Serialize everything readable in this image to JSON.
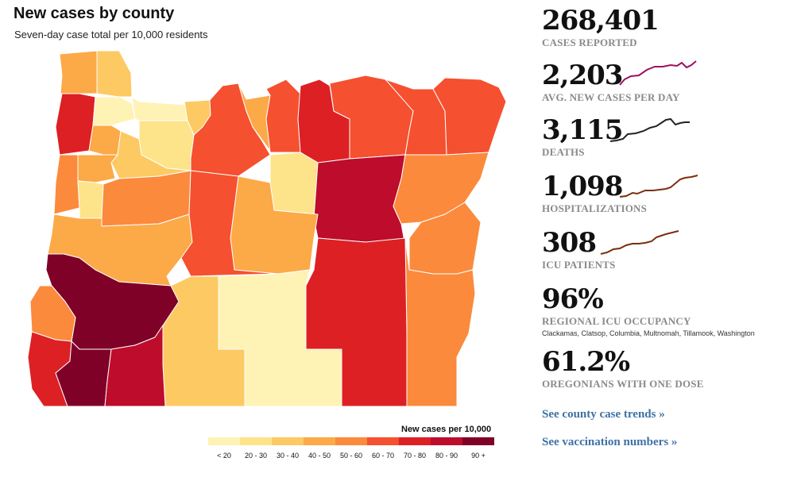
{
  "header": {
    "title": "New cases by county",
    "subtitle": "Seven-day case total per 10,000 residents"
  },
  "legend": {
    "title": "New cases per 10,000",
    "bins": [
      {
        "label": "< 20",
        "color": "#fff2b5"
      },
      {
        "label": "20 - 30",
        "color": "#fde48a"
      },
      {
        "label": "30 - 40",
        "color": "#fcc963"
      },
      {
        "label": "40 - 50",
        "color": "#fca947"
      },
      {
        "label": "50 - 60",
        "color": "#fb8a3d"
      },
      {
        "label": "60 - 70",
        "color": "#f5502f"
      },
      {
        "label": "70 - 80",
        "color": "#dd2024"
      },
      {
        "label": "80 - 90",
        "color": "#bd0c2c"
      },
      {
        "label": "90 +",
        "color": "#7f0127"
      }
    ]
  },
  "stats": [
    {
      "value": "268,401",
      "label": "CASES REPORTED",
      "spark": null
    },
    {
      "value": "2,203",
      "label": "AVG. NEW CASES PER DAY",
      "spark": "#9e0f63"
    },
    {
      "value": "3,115",
      "label": "DEATHS",
      "spark": "#222222"
    },
    {
      "value": "1,098",
      "label": "HOSPITALIZATIONS",
      "spark": "#7a2e0e"
    },
    {
      "value": "308",
      "label": "ICU PATIENTS",
      "spark": "#7a2e0e"
    },
    {
      "value": "96%",
      "label": "REGIONAL ICU OCCUPANCY",
      "sub": "Clackamas, Clatsop, Columbia, Multnomah, Tillamook, Washington",
      "spark": null
    },
    {
      "value": "61.2%",
      "label": "OREGONIANS WITH ONE DOSE",
      "spark": null
    }
  ],
  "links": {
    "county_trends": "See county case trends »",
    "vaccination": "See vaccination numbers »"
  }
}
